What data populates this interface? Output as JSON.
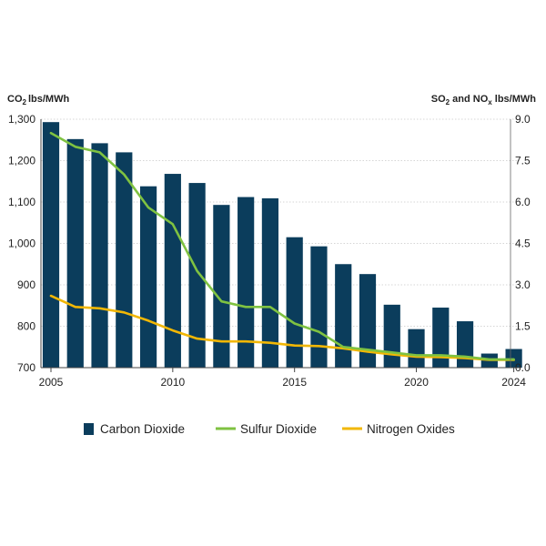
{
  "chart_data": {
    "type": "bar+line",
    "x_start": 2005,
    "x_end": 2024,
    "x_ticks": [
      "2005",
      "2010",
      "2015",
      "2020",
      "2024"
    ],
    "left_axis": {
      "label": "lbs/MWh",
      "label_prefix": "CO",
      "label_sub": "2",
      "min": 700,
      "max": 1300,
      "ticks": [
        {
          "value": 700,
          "label": "700"
        },
        {
          "value": 800,
          "label": "800"
        },
        {
          "value": 900,
          "label": "900"
        },
        {
          "value": 1000,
          "label": "1,000"
        },
        {
          "value": 1100,
          "label": "1,100"
        },
        {
          "value": 1200,
          "label": "1,200"
        },
        {
          "value": 1300,
          "label": "1,300"
        }
      ]
    },
    "right_axis": {
      "label_parts": [
        "SO",
        "2",
        " and NO",
        "x",
        " lbs/MWh"
      ],
      "min": 0,
      "max": 9,
      "ticks": [
        {
          "value": 0,
          "label": "0.0"
        },
        {
          "value": 1.5,
          "label": "1.5"
        },
        {
          "value": 3,
          "label": "3.0"
        },
        {
          "value": 4.5,
          "label": "4.5"
        },
        {
          "value": 6,
          "label": "6.0"
        },
        {
          "value": 7.5,
          "label": "7.5"
        },
        {
          "value": 9,
          "label": "9.0"
        }
      ]
    },
    "series": [
      {
        "name": "Carbon Dioxide",
        "kind": "bar",
        "axis": "left",
        "color": "#0b3d5c",
        "values": [
          1293,
          1252,
          1242,
          1220,
          1138,
          1168,
          1146,
          1093,
          1112,
          1109,
          1015,
          993,
          950,
          926,
          852,
          793,
          845,
          812,
          734,
          745
        ]
      },
      {
        "name": "Sulfur Dioxide",
        "kind": "line",
        "axis": "right",
        "color": "#7fc241",
        "values": [
          8.5,
          8.0,
          7.8,
          7.0,
          5.8,
          5.2,
          3.5,
          2.4,
          2.2,
          2.2,
          1.6,
          1.3,
          0.75,
          0.65,
          0.55,
          0.45,
          0.45,
          0.4,
          0.3,
          0.3
        ]
      },
      {
        "name": "Nitrogen Oxides",
        "kind": "line",
        "axis": "right",
        "color": "#f2b705",
        "values": [
          2.6,
          2.2,
          2.15,
          2.0,
          1.7,
          1.35,
          1.05,
          0.95,
          0.95,
          0.9,
          0.8,
          0.78,
          0.7,
          0.58,
          0.48,
          0.4,
          0.38,
          0.35,
          0.28,
          0.28
        ]
      }
    ],
    "grid": true,
    "legend_position": "bottom"
  }
}
